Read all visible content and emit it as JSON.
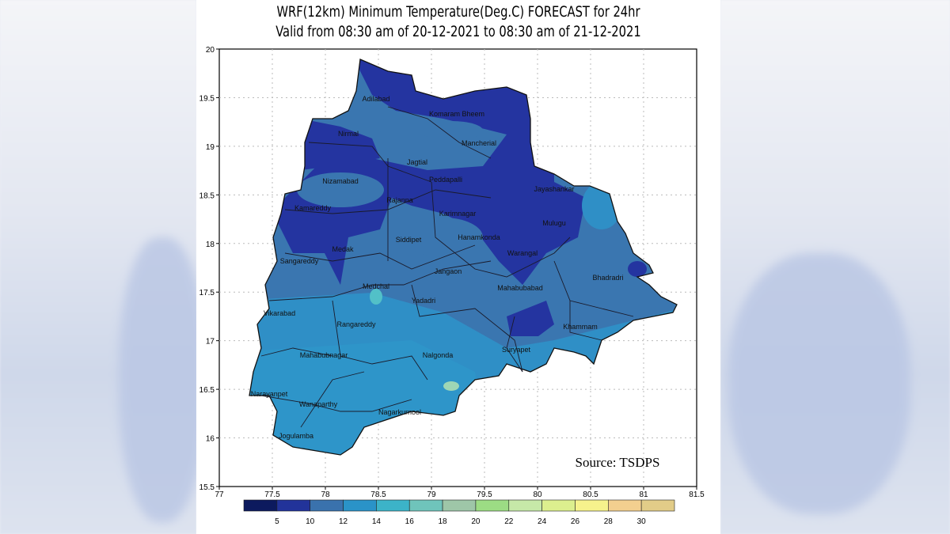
{
  "title": {
    "line1": "WRF(12km) Minimum Temperature(Deg.C) FORECAST for 24hr",
    "line2": "Valid from 08:30 am of 20-12-2021 to 08:30 am of 21-12-2021"
  },
  "axes": {
    "x_ticks": [
      "77",
      "77.5",
      "78",
      "78.5",
      "79",
      "79.5",
      "80",
      "80.5",
      "81",
      "81.5"
    ],
    "y_ticks": [
      "20",
      "19.5",
      "19",
      "18.5",
      "18",
      "17.5",
      "17",
      "16.5",
      "16",
      "15.5"
    ],
    "x_range": [
      77,
      81.5
    ],
    "y_range": [
      15.5,
      20
    ],
    "grid": true
  },
  "colorbar": {
    "labels": [
      "5",
      "10",
      "12",
      "14",
      "16",
      "18",
      "20",
      "22",
      "24",
      "26",
      "28",
      "30"
    ],
    "colors": [
      "#0c1a5e",
      "#22339a",
      "#3a72ad",
      "#2a93c8",
      "#3cb3c8",
      "#6fc4bb",
      "#9ec6a8",
      "#9cdc84",
      "#c6e8a8",
      "#dcef8e",
      "#f6f28c",
      "#f3cf8f",
      "#e2cc88"
    ]
  },
  "districts": [
    "Adilabad",
    "Komaram Bheem",
    "Nirmal",
    "Mancherial",
    "Jagtial",
    "Nizamabad",
    "Peddapalli",
    "Jayashankar",
    "Kamareddy",
    "Rajanna",
    "Karimnagar",
    "Mulugu",
    "Siddipet",
    "Hanamkonda",
    "Medak",
    "Sangareddy",
    "Warangal",
    "Bhadradri",
    "Medchal",
    "Jangaon",
    "Mahabubabad",
    "Yadadri",
    "Vikarabad",
    "Rangareddy",
    "Khammam",
    "Mahabubnagar",
    "Nalgonda",
    "Suryapet",
    "Narayanpet",
    "Wanaparthy",
    "Nagarkurnool",
    "Jogulamba"
  ],
  "source": "Source: TSDPS",
  "colors": {
    "dark": "#2434a0",
    "mid": "#3a76b0",
    "light": "#2f8fc6"
  }
}
